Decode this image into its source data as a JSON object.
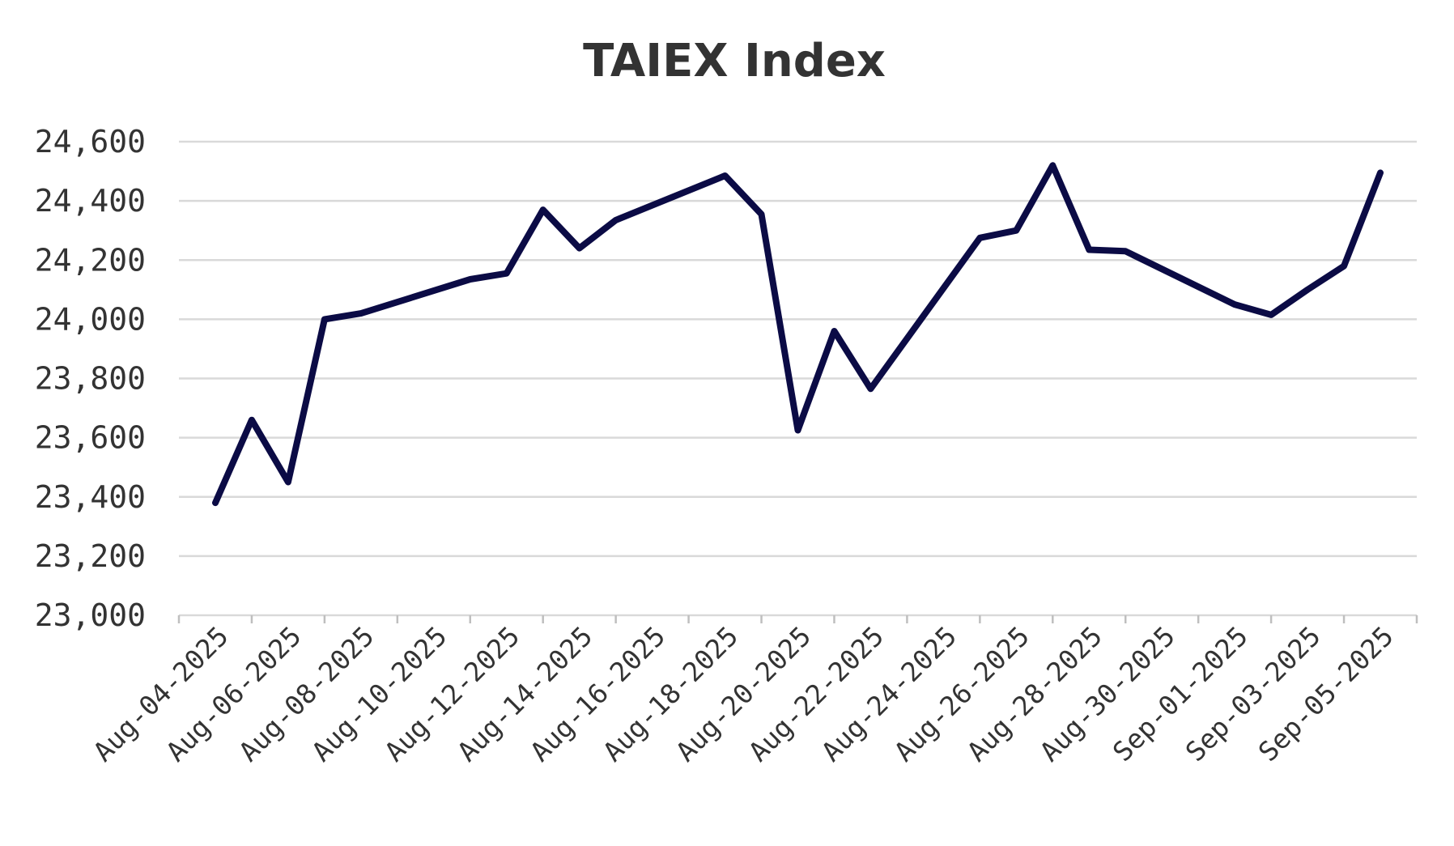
{
  "chart_data": {
    "type": "line",
    "title": "TAIEX Index",
    "xlabel": "",
    "ylabel": "",
    "ylim": [
      23000,
      24600
    ],
    "yticks": [
      23000,
      23200,
      23400,
      23600,
      23800,
      24000,
      24200,
      24400,
      24600
    ],
    "ytick_labels": [
      "23,000",
      "23,200",
      "23,400",
      "23,600",
      "23,800",
      "24,000",
      "24,200",
      "24,400",
      "24,600"
    ],
    "x_axis": {
      "start": "Aug-03-2025",
      "end": "Sep-06-2025"
    },
    "xtick_labels": [
      "Aug-04-2025",
      "Aug-06-2025",
      "Aug-08-2025",
      "Aug-10-2025",
      "Aug-12-2025",
      "Aug-14-2025",
      "Aug-16-2025",
      "Aug-18-2025",
      "Aug-20-2025",
      "Aug-22-2025",
      "Aug-24-2025",
      "Aug-26-2025",
      "Aug-28-2025",
      "Aug-30-2025",
      "Sep-01-2025",
      "Sep-03-2025",
      "Sep-05-2025"
    ],
    "grid": "horizontal",
    "series": [
      {
        "color": "#0b0b45",
        "x": [
          "Aug-04-2025",
          "Aug-05-2025",
          "Aug-06-2025",
          "Aug-07-2025",
          "Aug-08-2025",
          "Aug-11-2025",
          "Aug-12-2025",
          "Aug-13-2025",
          "Aug-14-2025",
          "Aug-15-2025",
          "Aug-18-2025",
          "Aug-19-2025",
          "Aug-20-2025",
          "Aug-21-2025",
          "Aug-22-2025",
          "Aug-25-2025",
          "Aug-26-2025",
          "Aug-27-2025",
          "Aug-28-2025",
          "Aug-29-2025",
          "Sep-01-2025",
          "Sep-02-2025",
          "Sep-03-2025",
          "Sep-04-2025",
          "Sep-05-2025"
        ],
        "values": [
          23380,
          23660,
          23450,
          24000,
          24020,
          24135,
          24155,
          24370,
          24240,
          24335,
          24485,
          24355,
          23625,
          23960,
          23765,
          24275,
          24300,
          24520,
          24235,
          24230,
          24050,
          24015,
          24100,
          24180,
          24495
        ]
      }
    ]
  }
}
